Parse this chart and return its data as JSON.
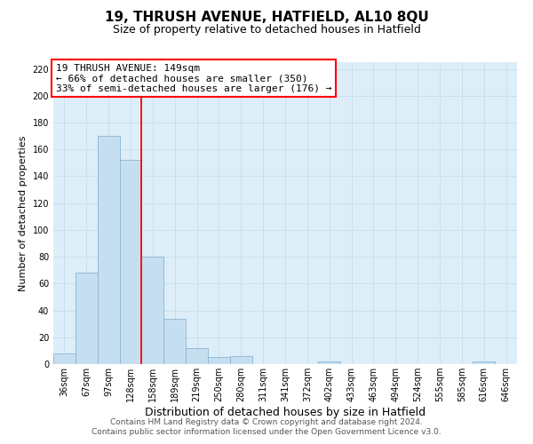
{
  "title": "19, THRUSH AVENUE, HATFIELD, AL10 8QU",
  "subtitle": "Size of property relative to detached houses in Hatfield",
  "xlabel": "Distribution of detached houses by size in Hatfield",
  "ylabel": "Number of detached properties",
  "bar_labels": [
    "36sqm",
    "67sqm",
    "97sqm",
    "128sqm",
    "158sqm",
    "189sqm",
    "219sqm",
    "250sqm",
    "280sqm",
    "311sqm",
    "341sqm",
    "372sqm",
    "402sqm",
    "433sqm",
    "463sqm",
    "494sqm",
    "524sqm",
    "555sqm",
    "585sqm",
    "616sqm",
    "646sqm"
  ],
  "bar_values": [
    8,
    68,
    170,
    152,
    80,
    34,
    12,
    5,
    6,
    0,
    0,
    0,
    2,
    0,
    0,
    0,
    0,
    0,
    0,
    2,
    0
  ],
  "bar_color": "#c6dff0",
  "bar_edge_color": "#8ab4d4",
  "vline_position": 3.5,
  "annotation_title": "19 THRUSH AVENUE: 149sqm",
  "annotation_line1": "← 66% of detached houses are smaller (350)",
  "annotation_line2": "33% of semi-detached houses are larger (176) →",
  "annotation_box_color": "white",
  "annotation_box_edge_color": "red",
  "vline_color": "red",
  "ylim": [
    0,
    225
  ],
  "yticks": [
    0,
    20,
    40,
    60,
    80,
    100,
    120,
    140,
    160,
    180,
    200,
    220
  ],
  "grid_color": "#c8dff0",
  "footer_line1": "Contains HM Land Registry data © Crown copyright and database right 2024.",
  "footer_line2": "Contains public sector information licensed under the Open Government Licence v3.0.",
  "background_color": "#ddeef8",
  "title_fontsize": 11,
  "subtitle_fontsize": 9,
  "xlabel_fontsize": 9,
  "ylabel_fontsize": 8,
  "tick_fontsize": 7,
  "annotation_fontsize": 8,
  "footer_fontsize": 6.5
}
